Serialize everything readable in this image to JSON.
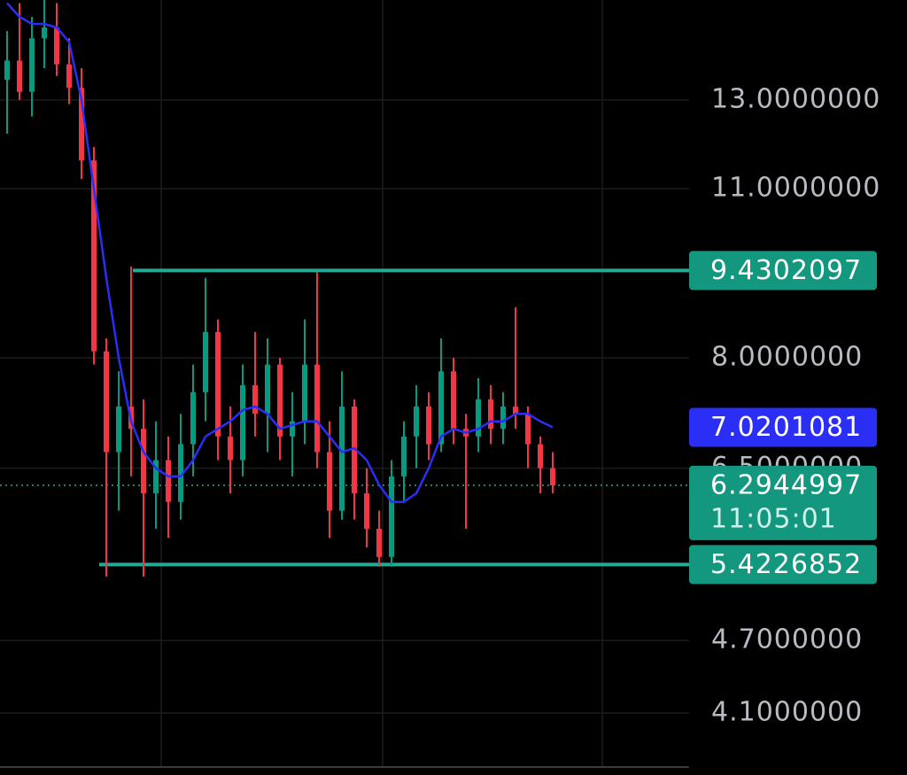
{
  "chart_data": {
    "type": "candlestick",
    "log_scale": true,
    "grid": true,
    "ylim": [
      3.71,
      15.69
    ],
    "yticks": [
      {
        "value": 13,
        "label": "13.0000000"
      },
      {
        "value": 11,
        "label": "11.0000000"
      },
      {
        "value": 8,
        "label": "8.0000000"
      },
      {
        "value": 6.5,
        "label": "6.5000000"
      },
      {
        "value": 4.7,
        "label": "4.7000000"
      },
      {
        "value": 4.1,
        "label": "4.1000000"
      }
    ],
    "up_color": "#089981",
    "down_color": "#f23645",
    "open": [
      13.5,
      14.0,
      13.2,
      14.6,
      14.9,
      13.9,
      13.3,
      11.6,
      8.1,
      6.7,
      7.3,
      7.0,
      6.2,
      6.6,
      6.1,
      6.8,
      7.5,
      8.4,
      6.9,
      6.6,
      7.6,
      7.2,
      7.9,
      6.9,
      7.1,
      7.9,
      6.7,
      6.0,
      7.3,
      6.2,
      5.8,
      5.5,
      6.4,
      6.9,
      7.3,
      6.8,
      7.8,
      7.0,
      6.9,
      7.4,
      7.0,
      7.3,
      7.2,
      6.8,
      6.5
    ],
    "high": [
      14.8,
      15.6,
      15.2,
      15.7,
      15.6,
      14.6,
      13.8,
      11.9,
      8.3,
      7.8,
      9.5,
      7.4,
      7.1,
      6.9,
      7.2,
      7.9,
      9.3,
      8.6,
      7.3,
      7.9,
      8.4,
      8.3,
      8.0,
      7.5,
      8.6,
      9.4,
      7.1,
      7.8,
      7.4,
      6.5,
      6.0,
      6.6,
      7.1,
      7.6,
      7.5,
      8.3,
      8.0,
      7.2,
      7.7,
      7.6,
      7.5,
      8.8,
      7.3,
      6.9,
      6.7
    ],
    "low": [
      12.2,
      13.0,
      12.6,
      13.8,
      13.6,
      12.9,
      11.2,
      7.9,
      5.3,
      6.0,
      6.4,
      5.3,
      5.8,
      5.7,
      5.9,
      6.4,
      7.1,
      6.6,
      6.2,
      6.4,
      6.9,
      6.7,
      6.6,
      6.4,
      6.8,
      6.5,
      5.7,
      5.9,
      5.9,
      5.6,
      5.4,
      5.4,
      6.1,
      6.5,
      6.6,
      6.7,
      6.8,
      5.8,
      6.7,
      6.8,
      6.8,
      7.0,
      6.5,
      6.2,
      6.2
    ],
    "close": [
      14.0,
      13.2,
      14.6,
      14.9,
      13.9,
      13.3,
      11.6,
      8.1,
      6.7,
      7.3,
      7.0,
      6.2,
      6.6,
      6.1,
      6.8,
      7.5,
      8.4,
      6.9,
      6.6,
      7.6,
      7.2,
      7.9,
      6.9,
      7.1,
      7.9,
      6.7,
      6.0,
      7.3,
      6.2,
      5.8,
      5.5,
      6.4,
      6.9,
      7.3,
      6.8,
      7.8,
      7.0,
      6.9,
      7.4,
      7.0,
      7.3,
      7.2,
      6.8,
      6.5,
      6.2944997
    ],
    "moving_average": {
      "color": "#2b2ef5",
      "values": [
        15.6,
        15.2,
        15.0,
        15.0,
        14.9,
        14.5,
        13.0,
        11.0,
        9.3,
        8.0,
        7.1,
        6.7,
        6.5,
        6.4,
        6.4,
        6.6,
        6.9,
        7.0,
        7.1,
        7.25,
        7.3,
        7.2,
        7.0,
        7.05,
        7.1,
        7.1,
        6.9,
        6.7,
        6.75,
        6.6,
        6.3,
        6.1,
        6.1,
        6.2,
        6.5,
        6.9,
        7.0,
        6.95,
        7.0,
        7.1,
        7.1,
        7.2,
        7.2,
        7.1,
        7.0201081
      ]
    },
    "levels": [
      {
        "value": 9.4302097,
        "color": "#22ab94"
      },
      {
        "value": 5.4226852,
        "color": "#22ab94"
      }
    ],
    "countdown": "11:05:01"
  }
}
